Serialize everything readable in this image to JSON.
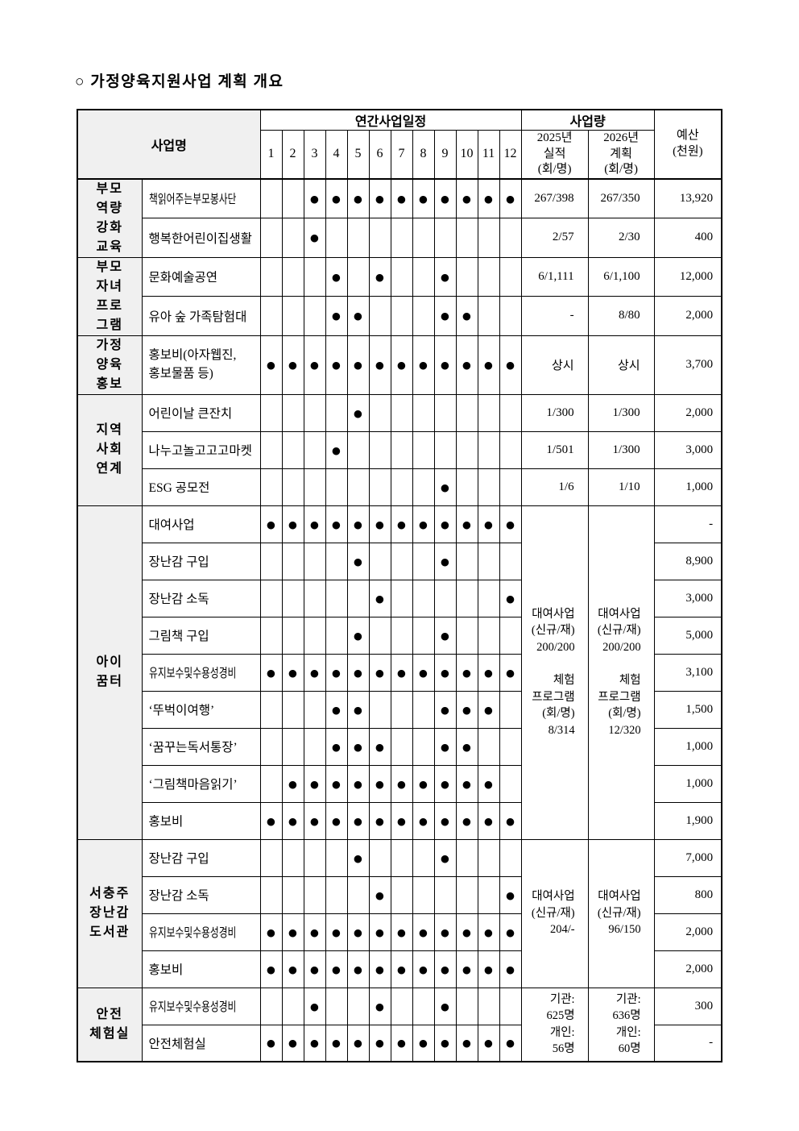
{
  "title": "○  가정양육지원사업  계획  개요",
  "table": {
    "headers": {
      "project_name": "사업명",
      "schedule": "연간사업일정",
      "months": [
        "1",
        "2",
        "3",
        "4",
        "5",
        "6",
        "7",
        "8",
        "9",
        "10",
        "11",
        "12"
      ],
      "volume": "사업량",
      "y2025": "2025년\n실적\n(회/명)",
      "y2026": "2026년\n계획\n(회/명)",
      "budget": "예산\n(천원)"
    },
    "groups": [
      {
        "label": "부모\n역량\n강화\n교육",
        "rows": [
          {
            "name": "책읽어주는부모봉사단",
            "months": [
              3,
              4,
              5,
              6,
              7,
              8,
              9,
              10,
              11,
              12
            ],
            "y2025": "267/398",
            "y2026": "267/350",
            "budget": "13,920"
          },
          {
            "name": "행복한어린이집생활",
            "months": [
              3
            ],
            "y2025": "2/57",
            "y2026": "2/30",
            "budget": "400"
          }
        ]
      },
      {
        "label": "부모\n자녀\n프로\n그램",
        "rows": [
          {
            "name": "문화예술공연",
            "months": [
              4,
              6,
              9
            ],
            "y2025": "6/1,111",
            "y2026": "6/1,100",
            "budget": "12,000"
          },
          {
            "name": "유아 숲 가족탐험대",
            "months": [
              4,
              5,
              9,
              10
            ],
            "y2025": "-",
            "y2026": "8/80",
            "budget": "2,000"
          }
        ]
      },
      {
        "label": "가정\n양육\n홍보",
        "rows": [
          {
            "name": "홍보비(아자웹진,\n홍보물품 등)",
            "months": [
              1,
              2,
              3,
              4,
              5,
              6,
              7,
              8,
              9,
              10,
              11,
              12
            ],
            "y2025": "상시",
            "y2026": "상시",
            "budget": "3,700"
          }
        ]
      },
      {
        "label": "지역\n사회\n연계",
        "rows": [
          {
            "name": "어린이날 큰잔치",
            "months": [
              5
            ],
            "y2025": "1/300",
            "y2026": "1/300",
            "budget": "2,000"
          },
          {
            "name": "나누고놀고고고마켓",
            "months": [
              4
            ],
            "y2025": "1/501",
            "y2026": "1/300",
            "budget": "3,000"
          },
          {
            "name": "ESG 공모전",
            "months": [
              9
            ],
            "y2025": "1/6",
            "y2026": "1/10",
            "budget": "1,000"
          }
        ]
      },
      {
        "label": "아이\n꿈터",
        "merged_y2025": "대여사업\n(신규/재)\n200/200\n\n체험\n프로그램\n(회/명)\n8/314",
        "merged_y2026": "대여사업\n(신규/재)\n200/200\n\n체험\n프로그램\n(회/명)\n12/320",
        "rows": [
          {
            "name": "대여사업",
            "months": [
              1,
              2,
              3,
              4,
              5,
              6,
              7,
              8,
              9,
              10,
              11,
              12
            ],
            "budget": "-"
          },
          {
            "name": "장난감 구입",
            "months": [
              5,
              9
            ],
            "budget": "8,900"
          },
          {
            "name": "장난감 소독",
            "months": [
              6,
              12
            ],
            "budget": "3,000"
          },
          {
            "name": "그림책 구입",
            "months": [
              5,
              9
            ],
            "budget": "5,000"
          },
          {
            "name": "유지보수및수용성경비",
            "months": [
              1,
              2,
              3,
              4,
              5,
              6,
              7,
              8,
              9,
              10,
              11,
              12
            ],
            "budget": "3,100"
          },
          {
            "name": "‘뚜벅이여행’",
            "months": [
              4,
              5,
              9,
              10,
              11
            ],
            "budget": "1,500"
          },
          {
            "name": "‘꿈꾸는독서통장’",
            "months": [
              4,
              5,
              6,
              9,
              10
            ],
            "budget": "1,000"
          },
          {
            "name": "‘그림책마음읽기’",
            "months": [
              2,
              3,
              4,
              5,
              6,
              7,
              8,
              9,
              10,
              11
            ],
            "budget": "1,000"
          },
          {
            "name": "홍보비",
            "months": [
              1,
              2,
              3,
              4,
              5,
              6,
              7,
              8,
              9,
              10,
              11,
              12
            ],
            "budget": "1,900"
          }
        ]
      },
      {
        "label": "서충주\n장난감\n도서관",
        "merged_y2025": "대여사업\n(신규/재)\n204/-",
        "merged_y2026": "대여사업\n(신규/재)\n96/150",
        "rows": [
          {
            "name": "장난감 구입",
            "months": [
              5,
              9
            ],
            "budget": "7,000"
          },
          {
            "name": "장난감 소독",
            "months": [
              6,
              12
            ],
            "budget": "800"
          },
          {
            "name": "유지보수및수용성경비",
            "months": [
              1,
              2,
              3,
              4,
              5,
              6,
              7,
              8,
              9,
              10,
              11,
              12
            ],
            "budget": "2,000"
          },
          {
            "name": "홍보비",
            "months": [
              1,
              2,
              3,
              4,
              5,
              6,
              7,
              8,
              9,
              10,
              11,
              12
            ],
            "budget": "2,000"
          }
        ]
      },
      {
        "label": "안전\n체험실",
        "merged_y2025": "기관:\n625명\n개인:\n56명",
        "merged_y2026": "기관:\n636명\n개인:\n60명",
        "rows": [
          {
            "name": "유지보수및수용성경비",
            "months": [
              3,
              6,
              9
            ],
            "budget": "300"
          },
          {
            "name": "안전체험실",
            "months": [
              1,
              2,
              3,
              4,
              5,
              6,
              7,
              8,
              9,
              10,
              11,
              12
            ],
            "budget": "-"
          }
        ]
      }
    ],
    "dot_glyph": "●"
  }
}
